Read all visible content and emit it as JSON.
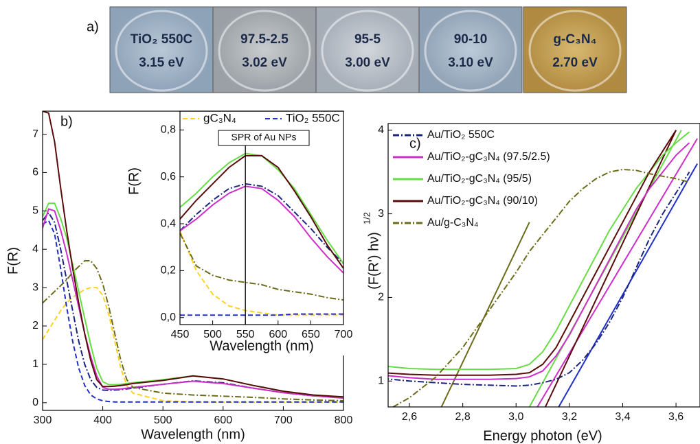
{
  "panel_a": {
    "label": "a)",
    "photos": [
      {
        "name": "TiO₂ 550C",
        "gap": "3.15 eV"
      },
      {
        "name": "97.5-2.5",
        "gap": "3.02 eV"
      },
      {
        "name": "95-5",
        "gap": "3.00 eV"
      },
      {
        "name": "90-10",
        "gap": "3.10 eV"
      },
      {
        "name": "g-C₃N₄",
        "gap": "2.70 eV"
      }
    ]
  },
  "chart_data": [
    {
      "type": "line",
      "panel_label": "b)",
      "xlabel": "Wavelength (nm)",
      "ylabel": "F(R)",
      "xlim": [
        300,
        800
      ],
      "ylim": [
        -0.2,
        7.6
      ],
      "xticks": [
        300,
        400,
        500,
        600,
        700,
        800
      ],
      "yticks": [
        0,
        1,
        2,
        3,
        4,
        5,
        6,
        7
      ],
      "x": [
        300,
        310,
        320,
        330,
        340,
        350,
        360,
        370,
        380,
        390,
        400,
        410,
        420,
        430,
        440,
        450,
        500,
        550,
        600,
        650,
        700,
        750,
        800
      ],
      "series": [
        {
          "color": "#ffd21f",
          "dash": "dashed",
          "values": [
            1.65,
            1.9,
            2.15,
            2.4,
            2.6,
            2.75,
            2.85,
            2.95,
            3.0,
            3.0,
            2.8,
            2.3,
            1.6,
            0.9,
            0.45,
            0.25,
            0.05,
            0.02,
            0.01,
            0.01,
            0.01,
            0.01,
            0.01
          ]
        },
        {
          "color": "#1f2fc8",
          "dash": "dashed",
          "values": [
            4.65,
            4.75,
            4.4,
            3.5,
            2.5,
            1.6,
            0.9,
            0.45,
            0.2,
            0.1,
            0.05,
            0.03,
            0.02,
            0.02,
            0.02,
            0.02,
            0.02,
            0.02,
            0.02,
            0.02,
            0.02,
            0.02,
            0.02
          ]
        },
        {
          "color": "#1a237e",
          "dash": "dashdot",
          "values": [
            4.75,
            4.95,
            4.7,
            4.0,
            3.2,
            2.4,
            1.6,
            1.0,
            0.6,
            0.4,
            0.33,
            0.32,
            0.33,
            0.34,
            0.36,
            0.38,
            0.48,
            0.57,
            0.52,
            0.38,
            0.26,
            0.18,
            0.13
          ]
        },
        {
          "color": "#cc2fc8",
          "dash": "solid",
          "values": [
            4.55,
            5.05,
            5.0,
            4.5,
            3.9,
            3.2,
            2.5,
            1.8,
            1.2,
            0.7,
            0.4,
            0.35,
            0.35,
            0.36,
            0.38,
            0.4,
            0.48,
            0.56,
            0.5,
            0.38,
            0.26,
            0.18,
            0.12
          ]
        },
        {
          "color": "#66dd44",
          "dash": "solid",
          "values": [
            4.85,
            5.2,
            5.2,
            4.8,
            4.3,
            3.6,
            2.9,
            2.2,
            1.5,
            0.9,
            0.55,
            0.47,
            0.47,
            0.48,
            0.5,
            0.52,
            0.6,
            0.7,
            0.62,
            0.45,
            0.3,
            0.2,
            0.15
          ]
        },
        {
          "color": "#5a0a0a",
          "dash": "solid",
          "values": [
            7.6,
            7.55,
            6.8,
            5.6,
            4.5,
            3.5,
            2.6,
            1.8,
            1.1,
            0.6,
            0.42,
            0.42,
            0.43,
            0.45,
            0.47,
            0.5,
            0.58,
            0.7,
            0.62,
            0.45,
            0.3,
            0.2,
            0.15
          ]
        },
        {
          "color": "#6b6b1a",
          "dash": "dashdot",
          "values": [
            2.6,
            2.75,
            2.9,
            3.05,
            3.2,
            3.4,
            3.55,
            3.7,
            3.7,
            3.5,
            3.1,
            2.5,
            1.8,
            1.1,
            0.6,
            0.4,
            0.25,
            0.2,
            0.17,
            0.14,
            0.1,
            0.07,
            0.05
          ]
        }
      ]
    },
    {
      "type": "line",
      "xlabel": "Wavelength (nm)",
      "ylabel": "F(R)",
      "xlim": [
        450,
        700
      ],
      "ylim": [
        -0.03,
        0.88
      ],
      "xticks": [
        450,
        500,
        550,
        600,
        650,
        700
      ],
      "yticks": [
        {
          "value": 0,
          "label": "0,0"
        },
        {
          "value": 0.2,
          "label": "0,2"
        },
        {
          "value": 0.4,
          "label": "0,4"
        },
        {
          "value": 0.6,
          "label": "0,6"
        },
        {
          "value": 0.8,
          "label": "0,8"
        }
      ],
      "annotation": {
        "text": "SPR of Au NPs",
        "x": 550
      },
      "x": [
        450,
        475,
        500,
        525,
        550,
        575,
        600,
        625,
        650,
        675,
        700
      ],
      "series": [
        {
          "name": "gC₃N₄",
          "color": "#ffd21f",
          "dash": "dashed",
          "values": [
            0.37,
            0.2,
            0.1,
            0.05,
            0.03,
            0.02,
            0.01,
            0.01,
            0.01,
            0.01,
            0.01
          ]
        },
        {
          "name": "TiO₂ 550C",
          "color": "#1f2fc8",
          "dash": "dashed",
          "values": [
            0.01,
            0.01,
            0.01,
            0.01,
            0.01,
            0.01,
            0.01,
            0.015,
            0.015,
            0.015,
            0.015
          ]
        },
        {
          "color": "#1a237e",
          "dash": "dashdot",
          "values": [
            0.37,
            0.44,
            0.5,
            0.55,
            0.57,
            0.56,
            0.52,
            0.45,
            0.38,
            0.3,
            0.23
          ]
        },
        {
          "color": "#cc2fc8",
          "dash": "solid",
          "values": [
            0.37,
            0.42,
            0.48,
            0.53,
            0.56,
            0.55,
            0.5,
            0.43,
            0.34,
            0.26,
            0.19
          ]
        },
        {
          "color": "#66dd44",
          "dash": "solid",
          "values": [
            0.47,
            0.53,
            0.6,
            0.66,
            0.7,
            0.69,
            0.63,
            0.55,
            0.44,
            0.33,
            0.23
          ]
        },
        {
          "color": "#5a0a0a",
          "dash": "solid",
          "values": [
            0.42,
            0.5,
            0.57,
            0.64,
            0.69,
            0.69,
            0.64,
            0.54,
            0.43,
            0.31,
            0.21
          ]
        },
        {
          "color": "#6b6b1a",
          "dash": "dashdot",
          "values": [
            0.36,
            0.22,
            0.18,
            0.16,
            0.15,
            0.14,
            0.12,
            0.11,
            0.1,
            0.085,
            0.075
          ]
        }
      ]
    },
    {
      "type": "line",
      "panel_label": "c)",
      "xlabel": "Energy photon (eV)",
      "ylabel": "(F(R') hν)",
      "ylabel_sup": "1/2",
      "xlim": [
        2.52,
        3.69
      ],
      "ylim": [
        0.69,
        4.08
      ],
      "xticks": [
        {
          "value": 2.6,
          "label": "2,6"
        },
        {
          "value": 2.8,
          "label": "2,8"
        },
        {
          "value": 3.0,
          "label": "3,0"
        },
        {
          "value": 3.2,
          "label": "3,2"
        },
        {
          "value": 3.4,
          "label": "3,4"
        },
        {
          "value": 3.6,
          "label": "3,6"
        }
      ],
      "yticks": [
        1,
        2,
        3,
        4
      ],
      "x": [
        2.5,
        2.6,
        2.7,
        2.8,
        2.9,
        3.0,
        3.05,
        3.1,
        3.15,
        3.2,
        3.25,
        3.3,
        3.35,
        3.4,
        3.45,
        3.5,
        3.55,
        3.6,
        3.65
      ],
      "series": [
        {
          "name": "Au/TiO₂ 550C",
          "color": "#1a237e",
          "dash": "dashdot",
          "values": [
            1.03,
            1.0,
            0.98,
            0.96,
            0.95,
            0.94,
            0.95,
            0.98,
            1.02,
            1.1,
            1.25,
            1.45,
            1.7,
            2.0,
            2.35,
            2.7,
            3.0,
            3.25,
            3.5
          ]
        },
        {
          "name": "Au/TiO₂-gC₃N₄ (97.5/2.5)",
          "color": "#cc2fc8",
          "dash": "solid",
          "values": [
            1.07,
            1.04,
            1.02,
            1.02,
            1.02,
            1.03,
            1.05,
            1.12,
            1.3,
            1.55,
            1.85,
            2.15,
            2.45,
            2.75,
            3.05,
            3.3,
            3.5,
            3.7,
            3.85
          ]
        },
        {
          "name": "Au/TiO₂-gC₃N₄ (95/5)",
          "color": "#66dd44",
          "dash": "solid",
          "values": [
            1.18,
            1.15,
            1.14,
            1.14,
            1.14,
            1.15,
            1.2,
            1.35,
            1.6,
            1.9,
            2.2,
            2.5,
            2.8,
            3.05,
            3.3,
            3.5,
            3.7,
            3.85,
            3.98
          ]
        },
        {
          "name": "Au/TiO₂-gC₃N₄ (90/10)",
          "color": "#5a0a0a",
          "dash": "solid",
          "values": [
            1.1,
            1.08,
            1.07,
            1.07,
            1.07,
            1.08,
            1.1,
            1.2,
            1.4,
            1.7,
            2.0,
            2.3,
            2.6,
            2.9,
            3.2,
            3.5,
            3.75,
            4.0,
            null
          ]
        },
        {
          "name": "Au/g-C₃N₄",
          "color": "#6b6b1a",
          "dash": "dashdot",
          "values": [
            0.62,
            0.8,
            1.05,
            1.4,
            1.85,
            2.3,
            2.55,
            2.75,
            2.95,
            3.15,
            3.3,
            3.42,
            3.5,
            3.53,
            3.52,
            3.48,
            3.45,
            3.42,
            3.38
          ]
        }
      ],
      "fit_lines": [
        {
          "color": "#6b6b1a",
          "x": [
            2.72,
            3.05
          ],
          "values": [
            0.69,
            2.9
          ]
        },
        {
          "color": "#66dd44",
          "x": [
            3.05,
            3.62
          ],
          "values": [
            0.69,
            4.0
          ]
        },
        {
          "color": "#cc2fc8",
          "x": [
            3.08,
            3.68
          ],
          "values": [
            0.69,
            3.9
          ]
        },
        {
          "color": "#5a0a0a",
          "x": [
            3.11,
            3.6
          ],
          "values": [
            0.69,
            4.0
          ]
        },
        {
          "color": "#1f2fc8",
          "x": [
            3.16,
            3.68
          ],
          "values": [
            0.69,
            3.6
          ]
        }
      ]
    }
  ]
}
